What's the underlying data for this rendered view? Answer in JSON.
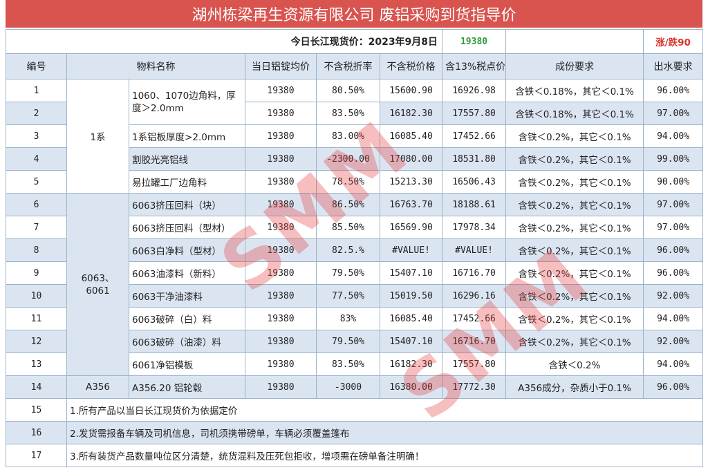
{
  "title": "湖州栋梁再生资源有限公司 废铝采购到货指导价",
  "price_label": "今日长江现货价：2023年9月8日",
  "price_value": "19380",
  "change_label": "涨/跌90",
  "headers": [
    "编号",
    "物料名称",
    "当日铝锭均价",
    "不含税折率",
    "不含税价格",
    "含13%税点价",
    "成份要求",
    "出水要求"
  ],
  "groups": {
    "g1": "1系",
    "g2": "6063、6061",
    "g3": "A356"
  },
  "rows": [
    {
      "no": "1",
      "name": "1060、1070边角料，厚度＞2.0mm",
      "avg": "19380",
      "rate": "80.50%",
      "price": "15600.90",
      "tax": "16926.98",
      "req": "含铁＜0.18%，其它＜0.1%",
      "water": "96.00%"
    },
    {
      "no": "2",
      "name": "",
      "avg": "19380",
      "rate": "83.50%",
      "price": "16182.30",
      "tax": "17557.80",
      "req": "含铁＜0.18%，其它＜0.1%",
      "water": "97.00%"
    },
    {
      "no": "3",
      "name": "1系铝板厚度>2.0mm",
      "avg": "19380",
      "rate": "83.00%",
      "price": "16085.40",
      "tax": "17452.66",
      "req": "含铁＜0.2%，其它＜0.1%",
      "water": "94.00%"
    },
    {
      "no": "4",
      "name": "割胶光亮铝线",
      "avg": "19380",
      "rate": "-2300.00",
      "price": "17080.00",
      "tax": "18531.80",
      "req": "含铁＜0.2%，其它＜0.1%",
      "water": "99.00%"
    },
    {
      "no": "5",
      "name": "易拉罐工厂边角料",
      "avg": "19380",
      "rate": "78.50%",
      "price": "15213.30",
      "tax": "16506.43",
      "req": "含铁＜0.2%，其它＜0.1%",
      "water": "90.00%"
    },
    {
      "no": "6",
      "name": "6063挤压回料（块）",
      "avg": "19380",
      "rate": "86.50%",
      "price": "16763.70",
      "tax": "18188.61",
      "req": "含铁＜0.2%，其它＜0.1%",
      "water": "97.00%"
    },
    {
      "no": "7",
      "name": "6063挤压回料（型材）",
      "avg": "19380",
      "rate": "85.50%",
      "price": "16569.90",
      "tax": "17978.34",
      "req": "含铁＜0.2%，其它＜0.1%",
      "water": "97.00%"
    },
    {
      "no": "8",
      "name": "6063白净料（型材）",
      "avg": "19380",
      "rate": "82.5.%",
      "price": "#VALUE!",
      "tax": "#VALUE!",
      "req": "含铁＜0.2%，其它＜0.1%",
      "water": "96.00%"
    },
    {
      "no": "9",
      "name": "6063油漆料（新料）",
      "avg": "19380",
      "rate": "79.50%",
      "price": "15407.10",
      "tax": "16716.70",
      "req": "含铁＜0.2%，其它＜0.1%",
      "water": "96.00%"
    },
    {
      "no": "10",
      "name": "6063干净油漆料",
      "avg": "19380",
      "rate": "77.50%",
      "price": "15019.50",
      "tax": "16296.16",
      "req": "含铁＜0.2%，其它＜0.1%",
      "water": "92.00%"
    },
    {
      "no": "11",
      "name": "6063破碎（白）料",
      "avg": "19380",
      "rate": "83%",
      "price": "16085.40",
      "tax": "17452.66",
      "req": "含铁＜0.2%，其它＜0.1%",
      "water": "94.00%"
    },
    {
      "no": "12",
      "name": "6063破碎（油漆）料",
      "avg": "19380",
      "rate": "79.50%",
      "price": "15407.10",
      "tax": "16716.70",
      "req": "含铁＜0.2%，其它＜0.1%",
      "water": "92.00%"
    },
    {
      "no": "13",
      "name": "6061净铝模板",
      "avg": "19380",
      "rate": "83.50%",
      "price": "16182.30",
      "tax": "17557.80",
      "req": "含铁＜0.2%",
      "water": "94.00%"
    },
    {
      "no": "14",
      "name": "A356.20 铝轮毂",
      "avg": "19380",
      "rate": "-3000",
      "price": "16380.00",
      "tax": "17772.30",
      "req": "A356成分，杂质小于0.1%",
      "water": "96.00%"
    }
  ],
  "notes": [
    {
      "no": "15",
      "text": "1.所有产品以当日长江现货价为依据定价"
    },
    {
      "no": "16",
      "text": "2.发货需报备车辆及司机信息，司机须携带磅单，车辆必须覆盖篷布"
    },
    {
      "no": "17",
      "text": "3.所有装货产品数量吨位区分清楚，统货混料及压死包拒收，增项需在磅单备注明确！"
    }
  ],
  "watermark": "SMM"
}
